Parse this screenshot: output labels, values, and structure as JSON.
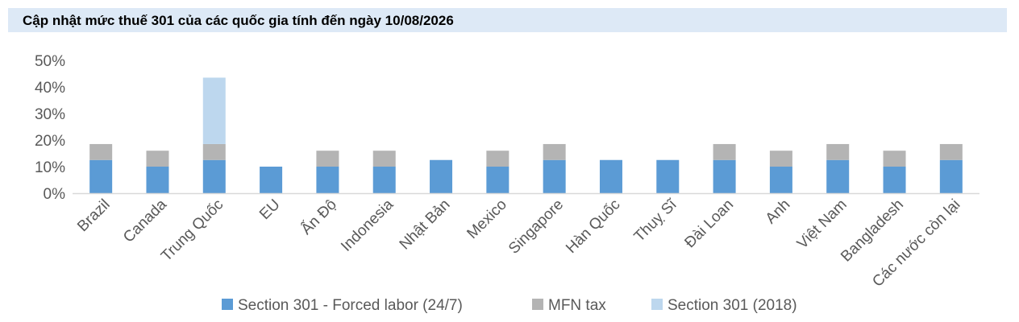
{
  "title": "Cập nhật mức thuế 301 của các quốc gia tính đến ngày 10/08/2026",
  "colors": {
    "title_background": "#dde9f6",
    "forced_labor": "#5b9bd5",
    "mfn": "#b4b4b4",
    "section_2018": "#bdd7ee",
    "axis": "#d9d9d9",
    "text": "#595959"
  },
  "chart_data": {
    "type": "bar",
    "stacked": true,
    "categories": [
      "Brazil",
      "Canada",
      "Trung Quốc",
      "EU",
      "Ấn Độ",
      "Indonesia",
      "Nhật Bản",
      "Mexico",
      "Singapore",
      "Hàn Quốc",
      "Thuỵ Sĩ",
      "Đài Loan",
      "Anh",
      "Việt Nam",
      "Bangladesh",
      "Các nước còn lại"
    ],
    "series": [
      {
        "name": "Section 301 - Forced labor (24/7)",
        "color": "#5b9bd5",
        "values": [
          12.5,
          10,
          12.5,
          10,
          10,
          10,
          12.5,
          10,
          12.5,
          12.5,
          12.5,
          12.5,
          10,
          12.5,
          10,
          12.5
        ]
      },
      {
        "name": "MFN tax",
        "color": "#b4b4b4",
        "values": [
          6,
          6,
          6,
          0,
          6,
          6,
          0,
          6,
          6,
          0,
          0,
          6,
          6,
          6,
          6,
          6
        ]
      },
      {
        "name": "Section 301 (2018)",
        "color": "#bdd7ee",
        "values": [
          0,
          0,
          25,
          0,
          0,
          0,
          0,
          0,
          0,
          0,
          0,
          0,
          0,
          0,
          0,
          0
        ]
      }
    ],
    "y_ticks": [
      "0%",
      "10%",
      "20%",
      "30%",
      "40%",
      "50%"
    ],
    "ylim": [
      0,
      50
    ],
    "grid": false,
    "legend_position": "bottom"
  }
}
